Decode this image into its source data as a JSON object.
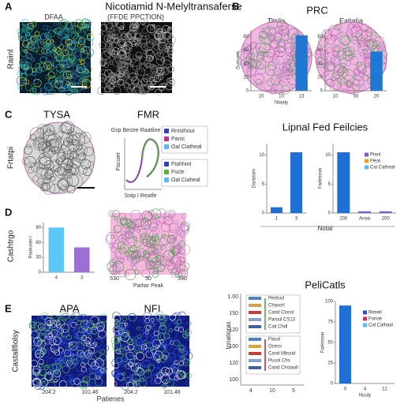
{
  "figure": {
    "A": {
      "label": "A",
      "title": "Nicotiamid N-Melyltransaferse",
      "left": "DFAA",
      "right": "(FFDE PPCTION)",
      "side": "Raiinl"
    },
    "B": {
      "label": "B",
      "title": "PRC",
      "left": "Taslis",
      "right": "Eatiatia"
    },
    "C": {
      "label": "C",
      "left": "TYSA",
      "right": "FMR",
      "side": "Frtatpi",
      "curve_title": "Gsp Bestre Raatline",
      "curve_ylabel": "Pacuiet",
      "curve_xlabel": "Sotp I Reatfe",
      "legend1": [
        "Rnisthout",
        "Panic",
        "Oal Clatheal"
      ],
      "legend2": [
        "Ftahhint",
        "Fscle",
        "Oal Ciaheal"
      ]
    },
    "L": {
      "title": "Lipnal Fed Feilcies",
      "xlabel": "Notal"
    },
    "D": {
      "label": "D",
      "side": "Cashtrgo",
      "image_xlabel": "Parliar Peak",
      "image_ticks": [
        "530",
        "50",
        "330"
      ]
    },
    "E": {
      "label": "E",
      "left": "APA",
      "right": "NFI",
      "side": "Castallfiolsy",
      "xlabel": "Patienes",
      "ticks": [
        "204.2",
        "101.46",
        "204.2",
        "101.46"
      ]
    },
    "P": {
      "title": "PeliCatls",
      "ylabel": "Innatioras",
      "ticks": [
        "1.00",
        "150",
        "120",
        "100",
        "120",
        "100"
      ],
      "xticks": [
        "4",
        "10",
        "5"
      ],
      "group1": [
        "Pedrucl",
        "Chasorl",
        "Cand Clossl",
        "Paroul CS13",
        "Cail Chdl"
      ],
      "group2": [
        "Flaud",
        "Ocess",
        "Cand Mboud",
        "Puuol Chs",
        "Cand Chstaoll"
      ]
    }
  },
  "chart_data": [
    {
      "type": "bar",
      "categories": [
        "10",
        "10",
        "13"
      ],
      "values": [
        null,
        null,
        82
      ],
      "color": "#1f78d1",
      "ylim": [
        0,
        90
      ],
      "yticks": [
        0,
        20,
        40,
        60,
        80
      ],
      "ylabel": "Duriuent",
      "xlabel": "Ntaaly"
    },
    {
      "type": "bar",
      "categories": [
        "10",
        "50",
        "20"
      ],
      "values": [
        null,
        null,
        58
      ],
      "color": "#1f78d1",
      "ylim": [
        0,
        90
      ],
      "yticks": [
        0,
        20,
        40,
        60,
        80
      ]
    },
    {
      "type": "bar",
      "categories": [
        "1",
        "3"
      ],
      "values": [
        1,
        10.5
      ],
      "color": "#1f6fd6",
      "ylim": [
        0,
        12
      ],
      "yticks": [
        0,
        5,
        10
      ],
      "ylabel": "Dartstom"
    },
    {
      "type": "bar",
      "categories": [
        "200",
        "Anaa",
        "200"
      ],
      "values": [
        10.5,
        0.3,
        0.3
      ],
      "colors": [
        "#1f6fd6",
        "#7a5fc7",
        "#7a5fc7"
      ],
      "ylim": [
        0,
        12
      ],
      "yticks": [
        0,
        5,
        10
      ],
      "ylabel": "Farlesson",
      "legend": [
        {
          "name": "Pianl",
          "color": "#7a5fc7"
        },
        {
          "name": "Fleat",
          "color": "#f0a020"
        },
        {
          "name": "Cal Catheal",
          "color": "#5bb8f0"
        }
      ]
    },
    {
      "type": "bar",
      "categories": [
        "4",
        "3"
      ],
      "values": [
        90,
        50
      ],
      "colors": [
        "#5bc8f5",
        "#9b6fd6"
      ],
      "ylim": [
        0,
        100
      ],
      "yticks": [
        0,
        30,
        60,
        90
      ],
      "ylabel": "Raukuoin l"
    },
    {
      "type": "bar",
      "categories": [
        "0",
        "4",
        "12"
      ],
      "values": [
        95,
        null,
        null
      ],
      "color": "#1f6fd6",
      "ylim": [
        0,
        100
      ],
      "yticks": [
        0,
        25,
        50,
        75,
        100
      ],
      "ylabel": "Farlesson",
      "xlabel": "Nuuly",
      "legend": [
        {
          "name": "Rimell",
          "color": "#3050c0"
        },
        {
          "name": "Fonoe",
          "color": "#d03060"
        },
        {
          "name": "Cal Calhaal",
          "color": "#5bb8f0"
        }
      ]
    }
  ]
}
